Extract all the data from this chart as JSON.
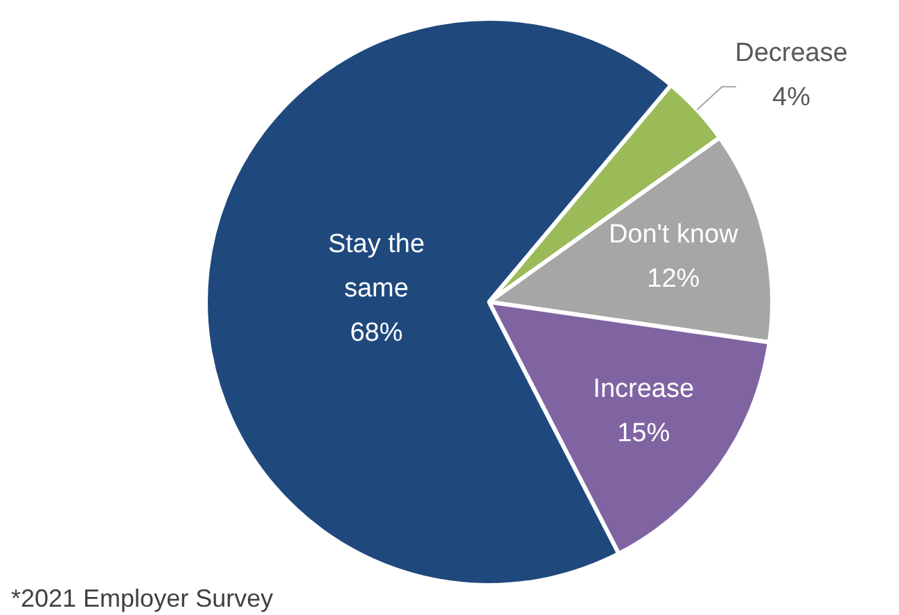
{
  "chart_data": {
    "type": "pie",
    "categories": [
      "Decrease",
      "Don't know",
      "Increase",
      "Stay the same"
    ],
    "values": [
      4,
      12,
      15,
      68
    ],
    "value_labels": [
      "4%",
      "12%",
      "15%",
      "68%"
    ],
    "colors": [
      "#9bbb59",
      "#a6a6a6",
      "#8064a2",
      "#1f497d"
    ],
    "annotations": [
      "*2021 Employer Survey"
    ],
    "legend": false
  }
}
